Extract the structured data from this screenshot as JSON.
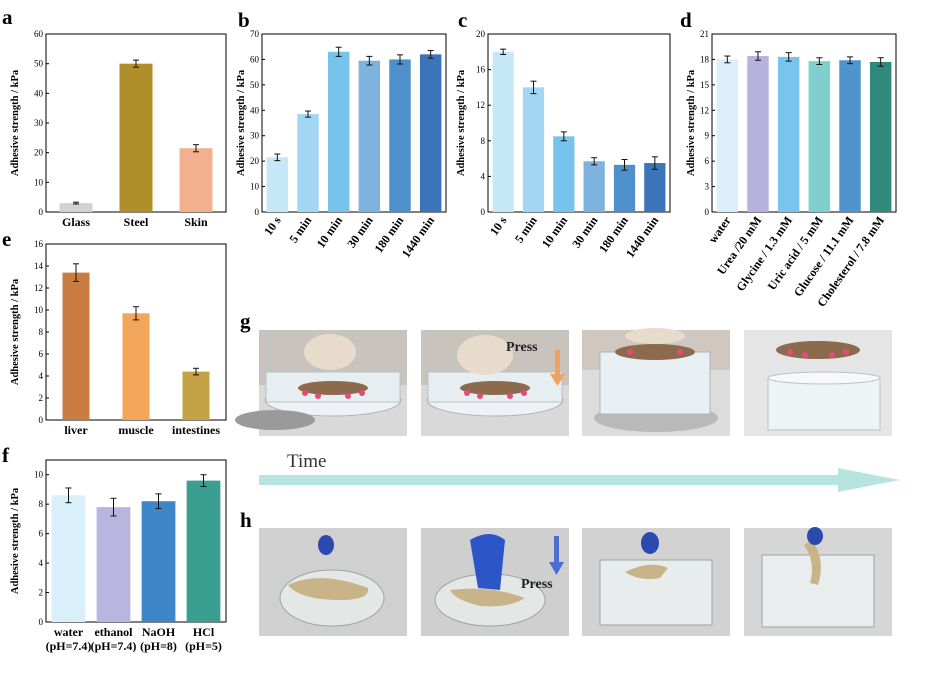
{
  "panel_letters": {
    "a": "a",
    "b": "b",
    "c": "c",
    "d": "d",
    "e": "e",
    "f": "f",
    "g": "g",
    "h": "h"
  },
  "colors": {
    "a": [
      "#d3d3d3",
      "#b08f2a",
      "#f3b08e"
    ],
    "b": [
      "#c6e7f8",
      "#a3d6f2",
      "#78c3ec",
      "#7db3dc",
      "#4f8fcc",
      "#3b74b8"
    ],
    "c": [
      "#c6e7f8",
      "#a3d6f2",
      "#78c3ec",
      "#7db3dc",
      "#4f8fcc",
      "#3b74b8"
    ],
    "d": [
      "#dbeef9",
      "#b6b2dd",
      "#79c4ec",
      "#7fd0cc",
      "#4f93cf",
      "#2f8a7c"
    ],
    "e": [
      "#c97d42",
      "#f3a55a",
      "#c4a244"
    ],
    "f": [
      "#d9f0fa",
      "#b9b5de",
      "#3f86c8",
      "#3a9e90"
    ],
    "time_arrow": "#b7e4e0",
    "g_arrow": "#f0a060",
    "h_arrow": "#4a6fd0"
  },
  "chart_data": [
    {
      "id": "a",
      "type": "bar",
      "ylabel": "Adhesive strength / kPa",
      "ylim": [
        0,
        60
      ],
      "yticks": [
        0,
        10,
        20,
        30,
        40,
        50,
        60
      ],
      "categories": [
        "Glass",
        "Steel",
        "Skin"
      ],
      "values": [
        3,
        50,
        21.5
      ],
      "errors": [
        0.3,
        1.2,
        1.2
      ]
    },
    {
      "id": "b",
      "type": "bar",
      "ylabel": "Adhesive strength / kPa",
      "ylim": [
        0,
        70
      ],
      "yticks": [
        0,
        10,
        20,
        30,
        40,
        50,
        60,
        70
      ],
      "categories": [
        "10 s",
        "5 min",
        "10 min",
        "30 min",
        "180 min",
        "1440 min"
      ],
      "values": [
        21.5,
        38.5,
        63,
        59.5,
        60,
        62
      ],
      "errors": [
        1.3,
        1.2,
        1.8,
        1.7,
        1.8,
        1.5
      ]
    },
    {
      "id": "c",
      "type": "bar",
      "ylabel": "Adhesive strength / kPa",
      "ylim": [
        0,
        20
      ],
      "yticks": [
        0,
        4,
        8,
        12,
        16,
        20
      ],
      "categories": [
        "10 s",
        "5 min",
        "10 min",
        "30 min",
        "180 min",
        "1440 min"
      ],
      "values": [
        18,
        14,
        8.5,
        5.7,
        5.3,
        5.5
      ],
      "errors": [
        0.3,
        0.7,
        0.5,
        0.4,
        0.6,
        0.7
      ]
    },
    {
      "id": "d",
      "type": "bar",
      "ylabel": "Adhesive strength / kPa",
      "ylim": [
        0,
        21
      ],
      "yticks": [
        0,
        3,
        6,
        9,
        12,
        15,
        18,
        21
      ],
      "categories": [
        "water",
        "Urea /20 mM",
        "Glycine / 1.3 mM",
        "Uric acid / 5 mM",
        "Glucose / 11.1 mM",
        "Cholesterol / 7.8 mM"
      ],
      "values": [
        18,
        18.4,
        18.3,
        17.8,
        17.9,
        17.7
      ],
      "errors": [
        0.4,
        0.5,
        0.5,
        0.4,
        0.4,
        0.5
      ]
    },
    {
      "id": "e",
      "type": "bar",
      "ylabel": "Adhesive strength / kPa",
      "ylim": [
        0,
        16
      ],
      "yticks": [
        0,
        2,
        4,
        6,
        8,
        10,
        12,
        14,
        16
      ],
      "categories": [
        "liver",
        "muscle",
        "intestines"
      ],
      "values": [
        13.4,
        9.7,
        4.4
      ],
      "errors": [
        0.8,
        0.6,
        0.3
      ]
    },
    {
      "id": "f",
      "type": "bar",
      "ylabel": "Adhesive strength / kPa",
      "ylim": [
        0,
        11
      ],
      "yticks": [
        0,
        2,
        4,
        6,
        8,
        10
      ],
      "categories": [
        "water",
        "ethanol",
        "NaOH",
        "HCl"
      ],
      "categories2": [
        "(pH=7.4)",
        "(pH=7.4)",
        "(pH=8)",
        "(pH=5)"
      ],
      "values": [
        8.6,
        7.8,
        8.2,
        9.6
      ],
      "errors": [
        0.5,
        0.6,
        0.5,
        0.4
      ]
    }
  ],
  "photos": {
    "press_label_g": "Press",
    "press_label_h": "Press",
    "time_label": "Time"
  }
}
